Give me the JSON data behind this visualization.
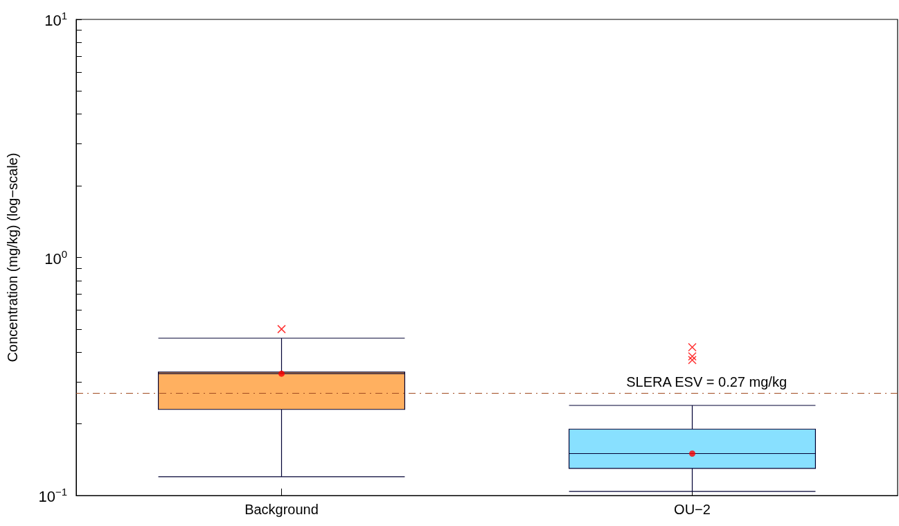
{
  "chart_data": {
    "type": "box",
    "ylabel": "Concentration (mg/kg) (log−scale)",
    "categories": [
      "Background",
      "OU−2"
    ],
    "log": true,
    "ylim": [
      0.1,
      10
    ],
    "yticks": [
      {
        "value": 0.1,
        "label": "10$^{−1}$"
      },
      {
        "value": 0.2,
        "label": null
      },
      {
        "value": 0.3,
        "label": null
      },
      {
        "value": 0.4,
        "label": null
      },
      {
        "value": 0.5,
        "label": null
      },
      {
        "value": 0.6,
        "label": null
      },
      {
        "value": 0.7,
        "label": null
      },
      {
        "value": 0.8,
        "label": null
      },
      {
        "value": 0.9,
        "label": null
      },
      {
        "value": 1,
        "label": "10$^{0}$"
      },
      {
        "value": 2,
        "label": null
      },
      {
        "value": 3,
        "label": null
      },
      {
        "value": 4,
        "label": null
      },
      {
        "value": 5,
        "label": null
      },
      {
        "value": 6,
        "label": null
      },
      {
        "value": 7,
        "label": null
      },
      {
        "value": 8,
        "label": null
      },
      {
        "value": 9,
        "label": null
      },
      {
        "value": 10,
        "label": "10$^{1}$"
      }
    ],
    "colors": [
      "#ffb060",
      "#88e0ff"
    ],
    "boxes": [
      {
        "low": 0.12,
        "q1": 0.23,
        "median": 0.325,
        "q3": 0.33,
        "high": 0.458,
        "mean": 0.325,
        "outliers": [
          0.5
        ]
      },
      {
        "low": 0.104,
        "q1": 0.13,
        "median": 0.15,
        "q3": 0.19,
        "high": 0.239,
        "mean": 0.15,
        "outliers": [
          0.42,
          0.384,
          0.371
        ]
      }
    ],
    "ref_lines": [
      {
        "axis": "y",
        "value": 0.27,
        "label": "SLERA ESV = 0.27 mg/kg",
        "color": "#a04a20",
        "line_style": "dashed"
      }
    ],
    "grid": false
  }
}
